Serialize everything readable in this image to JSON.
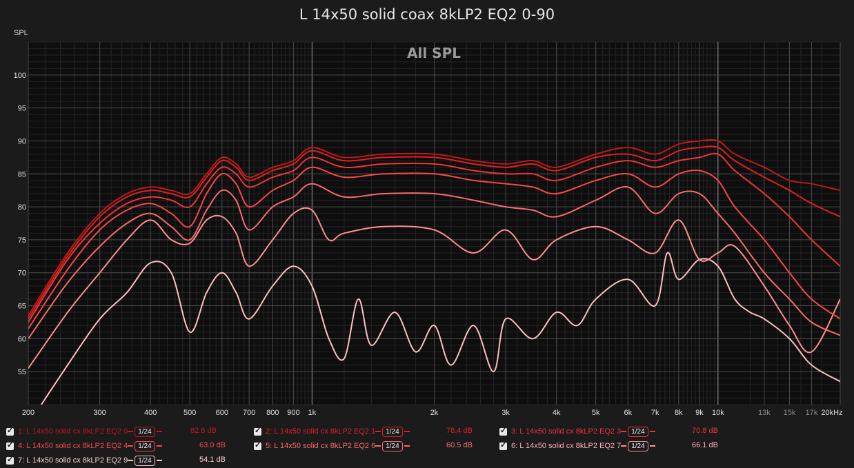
{
  "chart_data": {
    "type": "line",
    "title": "L 14x50 solid coax 8kLP2 EQ2 0-90",
    "subtitle": "All SPL",
    "ylabel": "SPL",
    "xlabel": "",
    "x_scale": "log",
    "xlim": [
      200,
      20000
    ],
    "ylim": [
      50,
      105
    ],
    "grid": true,
    "legend_position": "bottom",
    "xticks": [
      {
        "v": 200,
        "l": "200"
      },
      {
        "v": 300,
        "l": "300"
      },
      {
        "v": 400,
        "l": "400"
      },
      {
        "v": 500,
        "l": "500"
      },
      {
        "v": 600,
        "l": "600"
      },
      {
        "v": 700,
        "l": "700"
      },
      {
        "v": 800,
        "l": "800"
      },
      {
        "v": 900,
        "l": "900"
      },
      {
        "v": 1000,
        "l": "1k"
      },
      {
        "v": 2000,
        "l": "2k"
      },
      {
        "v": 3000,
        "l": "3k"
      },
      {
        "v": 4000,
        "l": "4k"
      },
      {
        "v": 5000,
        "l": "5k"
      },
      {
        "v": 6000,
        "l": "6k"
      },
      {
        "v": 7000,
        "l": "7k"
      },
      {
        "v": 8000,
        "l": "8k"
      },
      {
        "v": 9000,
        "l": "9k"
      },
      {
        "v": 10000,
        "l": "10k"
      },
      {
        "v": 13000,
        "l": "13k"
      },
      {
        "v": 15000,
        "l": "15k"
      },
      {
        "v": 17000,
        "l": "17k"
      },
      {
        "v": 20000,
        "l": "20kHz"
      }
    ],
    "yticks": [
      55,
      60,
      65,
      70,
      75,
      80,
      85,
      90,
      95,
      100
    ],
    "series": [
      {
        "name": "1: L 14x50 solid cx 8kLP2 EQ2 0",
        "color": "#c01818",
        "level": "82.6 dB",
        "points": [
          [
            200,
            63.5
          ],
          [
            250,
            73
          ],
          [
            300,
            79
          ],
          [
            350,
            82
          ],
          [
            400,
            83
          ],
          [
            450,
            82.5
          ],
          [
            500,
            82
          ],
          [
            550,
            85
          ],
          [
            600,
            87.5
          ],
          [
            650,
            86.5
          ],
          [
            700,
            84.5
          ],
          [
            800,
            86
          ],
          [
            900,
            87
          ],
          [
            1000,
            89
          ],
          [
            1200,
            87.5
          ],
          [
            1500,
            88
          ],
          [
            2000,
            88
          ],
          [
            2500,
            87
          ],
          [
            3000,
            86.5
          ],
          [
            3500,
            87
          ],
          [
            4000,
            86
          ],
          [
            5000,
            88
          ],
          [
            6000,
            89
          ],
          [
            7000,
            88
          ],
          [
            8000,
            89.5
          ],
          [
            9000,
            90
          ],
          [
            10000,
            90
          ],
          [
            11000,
            88
          ],
          [
            13000,
            86
          ],
          [
            15000,
            84
          ],
          [
            17000,
            83.5
          ],
          [
            20000,
            82.5
          ]
        ]
      },
      {
        "name": "2: L 14x50 solid cx 8kLP2 EQ2 1",
        "color": "#e02020",
        "level": "78.4 dB",
        "points": [
          [
            200,
            63
          ],
          [
            250,
            72.5
          ],
          [
            300,
            78.5
          ],
          [
            350,
            81.5
          ],
          [
            400,
            82.5
          ],
          [
            450,
            82
          ],
          [
            500,
            81.5
          ],
          [
            550,
            84.5
          ],
          [
            600,
            87
          ],
          [
            650,
            86
          ],
          [
            700,
            84
          ],
          [
            800,
            85.5
          ],
          [
            900,
            86.5
          ],
          [
            1000,
            88.5
          ],
          [
            1200,
            87
          ],
          [
            1500,
            87.5
          ],
          [
            2000,
            87.5
          ],
          [
            2500,
            86.5
          ],
          [
            3000,
            86
          ],
          [
            3500,
            86.5
          ],
          [
            4000,
            85.5
          ],
          [
            5000,
            87.5
          ],
          [
            6000,
            88
          ],
          [
            7000,
            87
          ],
          [
            8000,
            88.5
          ],
          [
            9000,
            89
          ],
          [
            10000,
            89
          ],
          [
            11000,
            87
          ],
          [
            13000,
            84.5
          ],
          [
            15000,
            82.5
          ],
          [
            17000,
            80.5
          ],
          [
            20000,
            78.5
          ]
        ]
      },
      {
        "name": "3: L 14x50 solid cx 8kLP2 EQ2 3",
        "color": "#f03535",
        "level": "70.8 dB",
        "points": [
          [
            200,
            62.5
          ],
          [
            250,
            72
          ],
          [
            300,
            77.5
          ],
          [
            350,
            80.5
          ],
          [
            400,
            81.5
          ],
          [
            450,
            81
          ],
          [
            500,
            80
          ],
          [
            550,
            83.5
          ],
          [
            600,
            86
          ],
          [
            650,
            85
          ],
          [
            700,
            83
          ],
          [
            800,
            84.5
          ],
          [
            900,
            85.5
          ],
          [
            1000,
            87.5
          ],
          [
            1200,
            86
          ],
          [
            1500,
            86.5
          ],
          [
            2000,
            86.5
          ],
          [
            2500,
            85.5
          ],
          [
            3000,
            85
          ],
          [
            3500,
            85
          ],
          [
            4000,
            84
          ],
          [
            5000,
            86
          ],
          [
            6000,
            87
          ],
          [
            7000,
            86
          ],
          [
            8000,
            87
          ],
          [
            9000,
            87.5
          ],
          [
            10000,
            88
          ],
          [
            11000,
            85.5
          ],
          [
            13000,
            82
          ],
          [
            15000,
            78.5
          ],
          [
            17000,
            75
          ],
          [
            20000,
            71
          ]
        ]
      },
      {
        "name": "4: L 14x50 solid cx 8kLP2 EQ2 4",
        "color": "#f84848",
        "level": "63.0 dB",
        "points": [
          [
            200,
            61.5
          ],
          [
            250,
            70.5
          ],
          [
            300,
            76.5
          ],
          [
            350,
            79.5
          ],
          [
            400,
            80.5
          ],
          [
            450,
            79
          ],
          [
            500,
            77
          ],
          [
            550,
            82
          ],
          [
            600,
            85
          ],
          [
            650,
            83.5
          ],
          [
            700,
            80
          ],
          [
            800,
            82.5
          ],
          [
            900,
            84
          ],
          [
            1000,
            86
          ],
          [
            1200,
            84.5
          ],
          [
            1500,
            85
          ],
          [
            2000,
            85
          ],
          [
            2500,
            84
          ],
          [
            3000,
            83.5
          ],
          [
            3500,
            83
          ],
          [
            4000,
            82
          ],
          [
            5000,
            84
          ],
          [
            6000,
            85
          ],
          [
            7000,
            83
          ],
          [
            8000,
            85
          ],
          [
            9000,
            85.5
          ],
          [
            10000,
            84
          ],
          [
            11000,
            80
          ],
          [
            13000,
            75
          ],
          [
            15000,
            70
          ],
          [
            17000,
            66
          ],
          [
            20000,
            63
          ]
        ]
      },
      {
        "name": "5: L 14x50 solid cx 8kLP2 EQ2 6",
        "color": "#f86b6b",
        "level": "60.5 dB",
        "points": [
          [
            200,
            60
          ],
          [
            250,
            68.5
          ],
          [
            300,
            74
          ],
          [
            350,
            77.5
          ],
          [
            400,
            79
          ],
          [
            450,
            77
          ],
          [
            500,
            75
          ],
          [
            550,
            79.5
          ],
          [
            600,
            82.5
          ],
          [
            650,
            81
          ],
          [
            700,
            76.5
          ],
          [
            800,
            80
          ],
          [
            900,
            81.5
          ],
          [
            1000,
            83.5
          ],
          [
            1200,
            81.5
          ],
          [
            1500,
            82
          ],
          [
            2000,
            82
          ],
          [
            2500,
            81
          ],
          [
            3000,
            80
          ],
          [
            3500,
            79.5
          ],
          [
            4000,
            78.5
          ],
          [
            5000,
            81
          ],
          [
            6000,
            83
          ],
          [
            7000,
            79
          ],
          [
            8000,
            82
          ],
          [
            9000,
            82
          ],
          [
            10000,
            79
          ],
          [
            11000,
            76
          ],
          [
            13000,
            70
          ],
          [
            15000,
            66
          ],
          [
            17000,
            62.5
          ],
          [
            20000,
            60.5
          ]
        ]
      },
      {
        "name": "6: L 14x50 solid cx 8kLP2 EQ2 7",
        "color": "#ff9090",
        "level": "66.1 dB",
        "points": [
          [
            200,
            55.5
          ],
          [
            250,
            64
          ],
          [
            300,
            70
          ],
          [
            350,
            75
          ],
          [
            400,
            78
          ],
          [
            450,
            75
          ],
          [
            500,
            74.5
          ],
          [
            550,
            78
          ],
          [
            600,
            78.5
          ],
          [
            650,
            76
          ],
          [
            700,
            71
          ],
          [
            800,
            75
          ],
          [
            900,
            79
          ],
          [
            1000,
            79.5
          ],
          [
            1100,
            75
          ],
          [
            1200,
            76
          ],
          [
            1500,
            77
          ],
          [
            2000,
            76.5
          ],
          [
            2500,
            73
          ],
          [
            3000,
            76.5
          ],
          [
            3500,
            72
          ],
          [
            4000,
            75
          ],
          [
            5000,
            77
          ],
          [
            6000,
            75
          ],
          [
            7000,
            73
          ],
          [
            8000,
            78
          ],
          [
            9000,
            72
          ],
          [
            10000,
            73
          ],
          [
            11000,
            74
          ],
          [
            13000,
            68
          ],
          [
            15000,
            62
          ],
          [
            17000,
            58
          ],
          [
            20000,
            66
          ]
        ]
      },
      {
        "name": "7: L 14x50 solid cx 8kLP2 EQ2 9",
        "color": "#ffc0c0",
        "level": "54.1 dB",
        "points": [
          [
            200,
            47
          ],
          [
            250,
            56
          ],
          [
            300,
            63
          ],
          [
            350,
            67
          ],
          [
            400,
            71.5
          ],
          [
            450,
            70
          ],
          [
            500,
            61
          ],
          [
            550,
            67
          ],
          [
            600,
            70
          ],
          [
            650,
            67
          ],
          [
            700,
            63
          ],
          [
            800,
            68
          ],
          [
            900,
            71
          ],
          [
            1000,
            68
          ],
          [
            1100,
            60
          ],
          [
            1200,
            57
          ],
          [
            1300,
            66
          ],
          [
            1400,
            59
          ],
          [
            1600,
            64
          ],
          [
            1800,
            58
          ],
          [
            2000,
            62
          ],
          [
            2200,
            56
          ],
          [
            2500,
            62
          ],
          [
            2800,
            55
          ],
          [
            3000,
            63
          ],
          [
            3500,
            60
          ],
          [
            4000,
            64
          ],
          [
            4500,
            62
          ],
          [
            5000,
            66
          ],
          [
            6000,
            69
          ],
          [
            7000,
            65
          ],
          [
            7500,
            73
          ],
          [
            8000,
            69
          ],
          [
            9000,
            72
          ],
          [
            10000,
            71
          ],
          [
            11000,
            66
          ],
          [
            12000,
            64
          ],
          [
            13000,
            63
          ],
          [
            15000,
            60
          ],
          [
            17000,
            56
          ],
          [
            20000,
            53.5
          ]
        ]
      }
    ]
  },
  "legend": {
    "smoothing": "1/24"
  }
}
